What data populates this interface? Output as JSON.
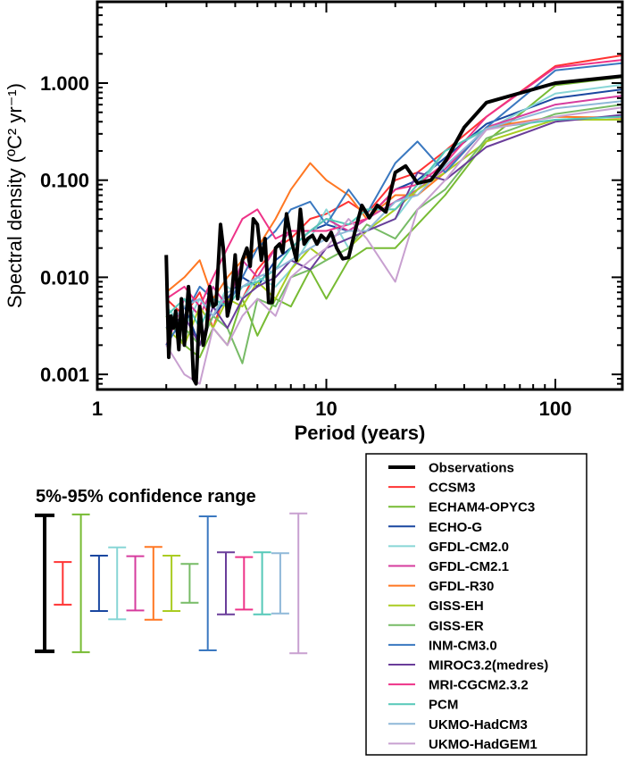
{
  "chart_data": {
    "type": "line",
    "xlabel": "Period (years)",
    "ylabel": "Spectral density (ºC² yr⁻¹)",
    "xscale": "log",
    "yscale": "log",
    "xlim": [
      1,
      195
    ],
    "ylim": [
      0.0007,
      6.9
    ],
    "xticks": [
      {
        "value": 1,
        "label": "1"
      },
      {
        "value": 10,
        "label": "10"
      },
      {
        "value": 100,
        "label": "100"
      }
    ],
    "yticks": [
      {
        "value": 0.001,
        "label": "0.001"
      },
      {
        "value": 0.01,
        "label": "0.010"
      },
      {
        "value": 0.1,
        "label": "0.100"
      },
      {
        "value": 1,
        "label": "1.000"
      }
    ],
    "grid": false,
    "legend_placement": "bottom-right",
    "observations": {
      "name": "Observations",
      "color": "#000000",
      "x": [
        2.0,
        2.05,
        2.1,
        2.15,
        2.2,
        2.27,
        2.33,
        2.4,
        2.5,
        2.56,
        2.63,
        2.7,
        2.8,
        2.9,
        3.0,
        3.1,
        3.2,
        3.3,
        3.45,
        3.55,
        3.7,
        3.85,
        4.0,
        4.1,
        4.3,
        4.5,
        4.65,
        4.8,
        5.0,
        5.2,
        5.4,
        5.6,
        5.8,
        6.0,
        6.25,
        6.45,
        6.7,
        7.0,
        7.4,
        7.7,
        8.0,
        8.3,
        8.7,
        9.1,
        9.5,
        10,
        10.5,
        11.1,
        11.8,
        12.5,
        13.3,
        14.3,
        15.4,
        16.7,
        18.2,
        20,
        22.2,
        25,
        28.6,
        33.3,
        40,
        50,
        100,
        195
      ],
      "y": [
        0.017,
        0.0015,
        0.004,
        0.003,
        0.0045,
        0.0018,
        0.006,
        0.002,
        0.008,
        0.004,
        0.0009,
        0.0008,
        0.005,
        0.002,
        0.003,
        0.008,
        0.005,
        0.0053,
        0.035,
        0.02,
        0.004,
        0.006,
        0.017,
        0.006,
        0.015,
        0.02,
        0.013,
        0.04,
        0.035,
        0.015,
        0.025,
        0.0055,
        0.0055,
        0.02,
        0.022,
        0.018,
        0.045,
        0.025,
        0.015,
        0.05,
        0.022,
        0.025,
        0.027,
        0.022,
        0.027,
        0.024,
        0.029,
        0.02,
        0.0155,
        0.016,
        0.029,
        0.055,
        0.041,
        0.055,
        0.047,
        0.12,
        0.14,
        0.093,
        0.1,
        0.16,
        0.35,
        0.63,
        1.0,
        1.18
      ]
    },
    "model_x": [
      2,
      2.4,
      2.8,
      3.2,
      3.7,
      4.3,
      5,
      6,
      7,
      8.5,
      10,
      12.5,
      15,
      20,
      25,
      33,
      50,
      100,
      195
    ],
    "series": [
      {
        "name": "CCSM3",
        "color": "#ff3333",
        "values": [
          0.006,
          0.004,
          0.007,
          0.003,
          0.008,
          0.006,
          0.012,
          0.02,
          0.025,
          0.04,
          0.045,
          0.06,
          0.045,
          0.1,
          0.12,
          0.2,
          0.45,
          1.5,
          1.93
        ]
      },
      {
        "name": "ECHAM4-OPYC3",
        "color": "#77bb33",
        "values": [
          0.004,
          0.002,
          0.0015,
          0.003,
          0.002,
          0.006,
          0.0025,
          0.006,
          0.005,
          0.012,
          0.006,
          0.015,
          0.02,
          0.02,
          0.035,
          0.07,
          0.25,
          0.95,
          1.15
        ]
      },
      {
        "name": "ECHO-G",
        "color": "#1a47a0",
        "values": [
          0.003,
          0.005,
          0.002,
          0.004,
          0.006,
          0.01,
          0.008,
          0.015,
          0.02,
          0.03,
          0.035,
          0.03,
          0.04,
          0.08,
          0.1,
          0.17,
          0.38,
          0.7,
          0.86
        ]
      },
      {
        "name": "GFDL-CM2.0",
        "color": "#88d6d6",
        "values": [
          0.005,
          0.003,
          0.006,
          0.004,
          0.008,
          0.006,
          0.01,
          0.008,
          0.012,
          0.025,
          0.05,
          0.02,
          0.03,
          0.04,
          0.08,
          0.2,
          0.33,
          0.78,
          0.96
        ]
      },
      {
        "name": "GFDL-CM2.1",
        "color": "#d63c9e",
        "values": [
          0.002,
          0.006,
          0.004,
          0.008,
          0.005,
          0.015,
          0.01,
          0.02,
          0.03,
          0.03,
          0.04,
          0.03,
          0.04,
          0.06,
          0.08,
          0.13,
          0.35,
          0.6,
          0.74
        ]
      },
      {
        "name": "GFDL-R30",
        "color": "#ff7722",
        "values": [
          0.007,
          0.01,
          0.015,
          0.006,
          0.01,
          0.015,
          0.02,
          0.04,
          0.08,
          0.15,
          0.1,
          0.07,
          0.04,
          0.07,
          0.07,
          0.12,
          0.35,
          0.45,
          0.44
        ]
      },
      {
        "name": "GISS-EH",
        "color": "#aacc22",
        "values": [
          0.003,
          0.002,
          0.005,
          0.003,
          0.006,
          0.005,
          0.009,
          0.006,
          0.012,
          0.02,
          0.015,
          0.02,
          0.03,
          0.05,
          0.08,
          0.12,
          0.25,
          0.42,
          0.42
        ]
      },
      {
        "name": "GISS-ER",
        "color": "#77bb66",
        "values": [
          0.004,
          0.003,
          0.002,
          0.004,
          0.003,
          0.0013,
          0.006,
          0.005,
          0.01,
          0.012,
          0.015,
          0.02,
          0.035,
          0.025,
          0.05,
          0.08,
          0.27,
          0.48,
          0.6
        ]
      },
      {
        "name": "INM-CM3.0",
        "color": "#3a78c0",
        "values": [
          0.002,
          0.004,
          0.008,
          0.006,
          0.005,
          0.01,
          0.02,
          0.03,
          0.05,
          0.06,
          0.035,
          0.08,
          0.045,
          0.15,
          0.25,
          0.12,
          0.35,
          1.35,
          1.6
        ]
      },
      {
        "name": "MIROC3.2(medres)",
        "color": "#6a3d9a",
        "values": [
          0.003,
          0.004,
          0.002,
          0.005,
          0.003,
          0.006,
          0.008,
          0.01,
          0.015,
          0.012,
          0.02,
          0.025,
          0.03,
          0.04,
          0.12,
          0.1,
          0.22,
          0.4,
          0.47
        ]
      },
      {
        "name": "MRI-CGCM2.3.2",
        "color": "#ee3388",
        "values": [
          0.006,
          0.008,
          0.005,
          0.01,
          0.02,
          0.04,
          0.05,
          0.025,
          0.03,
          0.03,
          0.03,
          0.035,
          0.04,
          0.08,
          0.09,
          0.15,
          0.45,
          1.45,
          1.73
        ]
      },
      {
        "name": "PCM",
        "color": "#55c8b8",
        "values": [
          0.004,
          0.006,
          0.003,
          0.006,
          0.005,
          0.008,
          0.009,
          0.012,
          0.02,
          0.03,
          0.04,
          0.035,
          0.05,
          0.05,
          0.09,
          0.2,
          0.34,
          0.42,
          0.45
        ]
      },
      {
        "name": "UKMO-HadCM3",
        "color": "#8fb8d8",
        "values": [
          0.003,
          0.005,
          0.006,
          0.004,
          0.007,
          0.008,
          0.01,
          0.012,
          0.015,
          0.02,
          0.025,
          0.03,
          0.03,
          0.06,
          0.07,
          0.14,
          0.34,
          0.55,
          0.65
        ]
      },
      {
        "name": "UKMO-HadGEM1",
        "color": "#c8a0d0",
        "values": [
          0.002,
          0.001,
          0.0008,
          0.003,
          0.002,
          0.004,
          0.006,
          0.004,
          0.01,
          0.015,
          0.02,
          0.04,
          0.025,
          0.009,
          0.05,
          0.1,
          0.33,
          0.45,
          0.56
        ]
      }
    ],
    "confidence": {
      "title": "5%-95% confidence range",
      "unit": "log10 half-width (decades of spectral density)",
      "ranges": [
        {
          "name": "Observations",
          "half_width": 0.7
        },
        {
          "name": "CCSM3",
          "half_width": 0.22
        },
        {
          "name": "ECHAM4-OPYC3",
          "half_width": 0.71
        },
        {
          "name": "ECHO-G",
          "half_width": 0.285
        },
        {
          "name": "GFDL-CM2.0",
          "half_width": 0.37
        },
        {
          "name": "GFDL-CM2.1",
          "half_width": 0.28
        },
        {
          "name": "GFDL-R30",
          "half_width": 0.375
        },
        {
          "name": "GISS-EH",
          "half_width": 0.285
        },
        {
          "name": "GISS-ER",
          "half_width": 0.2
        },
        {
          "name": "INM-CM3.0",
          "half_width": 0.69
        },
        {
          "name": "MIROC3.2(medres)",
          "half_width": 0.32
        },
        {
          "name": "MRI-CGCM2.3.2",
          "half_width": 0.27
        },
        {
          "name": "PCM",
          "half_width": 0.32
        },
        {
          "name": "UKMO-HadCM3",
          "half_width": 0.31
        },
        {
          "name": "UKMO-HadGEM1",
          "half_width": 0.72
        }
      ]
    }
  }
}
